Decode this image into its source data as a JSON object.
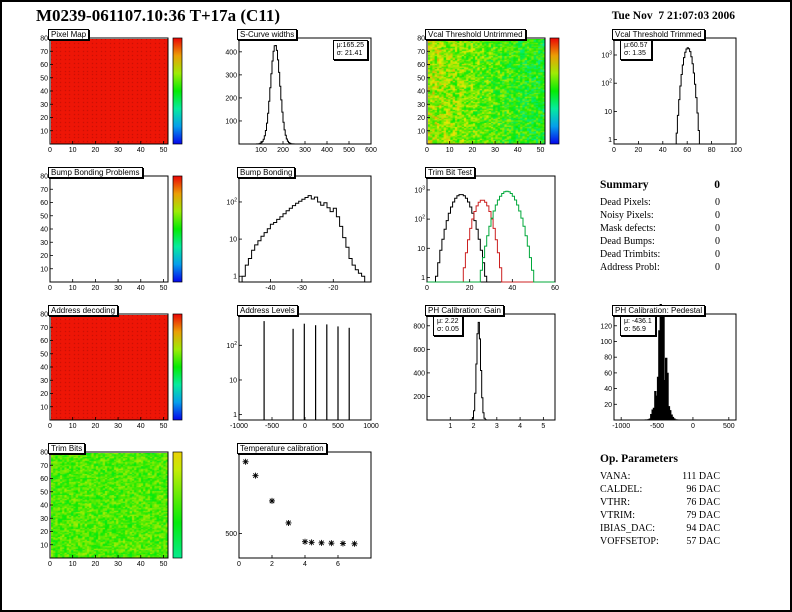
{
  "header": {
    "title": "M0239-061107.10:36 T+17a (C11)",
    "timestamp": "Tue Nov  7 21:07:03 2006"
  },
  "summary": {
    "title": "Summary",
    "value": "0",
    "rows": [
      {
        "label": "Dead Pixels:",
        "value": "0"
      },
      {
        "label": "Noisy Pixels:",
        "value": "0"
      },
      {
        "label": "Mask defects:",
        "value": "0"
      },
      {
        "label": "Dead Bumps:",
        "value": "0"
      },
      {
        "label": "Dead Trimbits:",
        "value": "0"
      },
      {
        "label": "Address Probl:",
        "value": "0"
      }
    ]
  },
  "op_parameters": {
    "title": "Op. Parameters",
    "rows": [
      {
        "label": "VANA:",
        "value": "111 DAC"
      },
      {
        "label": "CALDEL:",
        "value": "96 DAC"
      },
      {
        "label": "VTHR:",
        "value": "76 DAC"
      },
      {
        "label": "VTRIM:",
        "value": "79 DAC"
      },
      {
        "label": "IBIAS_DAC:",
        "value": "94 DAC"
      },
      {
        "label": "VOFFSETOP:",
        "value": "57 DAC"
      }
    ]
  },
  "chart_data": [
    {
      "id": "pixel-map",
      "type": "heatmap",
      "title": "Pixel Map",
      "x_range": [
        0,
        52
      ],
      "y_range": [
        0,
        80
      ],
      "x_ticks": [
        0,
        10,
        20,
        30,
        40,
        50
      ],
      "y_ticks": [
        10,
        20,
        30,
        40,
        50,
        60,
        70,
        80
      ],
      "field": "uniform_red",
      "colorbar": true,
      "palette": "rainbow",
      "palette_range": [
        0,
        1
      ]
    },
    {
      "id": "s-curve-widths",
      "type": "hist",
      "title": "S-Curve widths",
      "x_range": [
        0,
        600
      ],
      "x_ticks": [
        100,
        200,
        300,
        400,
        500,
        600
      ],
      "yscale": "linear",
      "y_range": [
        0,
        460
      ],
      "y_ticks": [
        100,
        200,
        300,
        400
      ],
      "bins": 120,
      "gaussian": {
        "mean": 165.25,
        "sigma": 21.41,
        "amp": 430
      },
      "stats": [
        "μ:165.25",
        "σ: 21.41"
      ],
      "stats_pos": "right"
    },
    {
      "id": "vcal-threshold-untrimmed",
      "type": "heatmap",
      "title": "Vcal Threshold Untrimmed",
      "x_range": [
        0,
        52
      ],
      "y_range": [
        0,
        80
      ],
      "x_ticks": [
        0,
        10,
        20,
        30,
        40,
        50
      ],
      "y_ticks": [
        10,
        20,
        30,
        40,
        50,
        60,
        70,
        80
      ],
      "field": "noise",
      "base": 0.58,
      "spread": 0.32,
      "grad_x": -0.1,
      "colorbar": true,
      "palette": "rainbow",
      "palette_range": [
        0,
        1
      ]
    },
    {
      "id": "vcal-threshold-trimmed",
      "type": "hist",
      "title": "Vcal Threshold Trimmed",
      "x_range": [
        0,
        100
      ],
      "x_ticks": [
        0,
        20,
        40,
        60,
        80,
        100
      ],
      "yscale": "log",
      "y_range": [
        0.7,
        4000
      ],
      "y_ticks": [
        1,
        10,
        100,
        1000
      ],
      "bins": 100,
      "gaussian": {
        "mean": 60.57,
        "sigma": 1.35,
        "amp": 1800,
        "widen": 1.8
      },
      "stats": [
        "μ:60.57",
        "σ: 1.35"
      ],
      "stats_pos": "left"
    },
    {
      "id": "bump-bonding-problems",
      "type": "heatmap",
      "title": "Bump Bonding Problems",
      "x_range": [
        0,
        52
      ],
      "y_range": [
        0,
        80
      ],
      "x_ticks": [
        0,
        10,
        20,
        30,
        40,
        50
      ],
      "y_ticks": [
        10,
        20,
        30,
        40,
        50,
        60,
        70,
        80
      ],
      "field": "empty",
      "colorbar": true,
      "palette": "rainbow",
      "palette_range": [
        0,
        1
      ]
    },
    {
      "id": "bump-bonding",
      "type": "hist",
      "title": "Bump Bonding",
      "x_range": [
        -50,
        -8
      ],
      "x_ticks": [
        -40,
        -30,
        -20
      ],
      "yscale": "log",
      "y_range": [
        0.7,
        500
      ],
      "y_ticks": [
        1,
        10,
        100
      ],
      "points": [
        [
          -49,
          1
        ],
        [
          -48,
          2
        ],
        [
          -47,
          3
        ],
        [
          -46,
          5
        ],
        [
          -45,
          7
        ],
        [
          -44,
          9
        ],
        [
          -43,
          12
        ],
        [
          -42,
          15
        ],
        [
          -41,
          19
        ],
        [
          -40,
          25
        ],
        [
          -39,
          28
        ],
        [
          -38,
          34
        ],
        [
          -37,
          40
        ],
        [
          -36,
          48
        ],
        [
          -35,
          58
        ],
        [
          -34,
          68
        ],
        [
          -33,
          80
        ],
        [
          -32,
          92
        ],
        [
          -31,
          104
        ],
        [
          -30,
          118
        ],
        [
          -29,
          132
        ],
        [
          -28,
          148
        ],
        [
          -27,
          120
        ],
        [
          -26,
          135
        ],
        [
          -25,
          100
        ],
        [
          -24,
          82
        ],
        [
          -23,
          95
        ],
        [
          -22,
          70
        ],
        [
          -21,
          55
        ],
        [
          -20,
          68
        ],
        [
          -19,
          40
        ],
        [
          -18,
          22
        ],
        [
          -17,
          11
        ],
        [
          -16,
          6
        ],
        [
          -15,
          3
        ],
        [
          -14,
          2
        ],
        [
          -13,
          1.5
        ],
        [
          -12,
          1.2
        ],
        [
          -11,
          1
        ],
        [
          -10,
          1
        ]
      ]
    },
    {
      "id": "trim-bit-test",
      "type": "hist",
      "title": "Trim Bit Test",
      "x_range": [
        0,
        60
      ],
      "x_ticks": [
        0,
        20,
        40,
        60
      ],
      "yscale": "log",
      "y_range": [
        0.7,
        3000
      ],
      "y_ticks": [
        1,
        10,
        100,
        1000
      ],
      "bins": 60,
      "series": [
        {
          "name": "trim-bits-low",
          "color": "#000000",
          "gaussian": {
            "mean": 16,
            "sigma": 3.2,
            "amp": 700
          }
        },
        {
          "name": "trim-bits-mid",
          "color": "#cc2020",
          "gaussian": {
            "mean": 26,
            "sigma": 2.6,
            "amp": 450
          }
        },
        {
          "name": "trim-bits-high",
          "color": "#00a83a",
          "gaussian": {
            "mean": 37.5,
            "sigma": 3.4,
            "amp": 900
          }
        }
      ]
    },
    {
      "id": "address-decoding",
      "type": "heatmap",
      "title": "Address decoding",
      "x_range": [
        0,
        52
      ],
      "y_range": [
        0,
        80
      ],
      "x_ticks": [
        0,
        10,
        20,
        30,
        40,
        50
      ],
      "y_ticks": [
        10,
        20,
        30,
        40,
        50,
        60,
        70,
        80
      ],
      "field": "uniform_red",
      "colorbar": true,
      "palette": "rainbow",
      "palette_range": [
        0,
        1
      ]
    },
    {
      "id": "address-levels",
      "type": "spikes",
      "title": "Address Levels",
      "x_range": [
        -1000,
        1000
      ],
      "x_ticks": [
        -1000,
        -500,
        0,
        500,
        1000
      ],
      "yscale": "log",
      "y_range": [
        0.7,
        800
      ],
      "y_ticks": [
        1,
        10,
        100
      ],
      "spikes": [
        [
          -620,
          500
        ],
        [
          -180,
          300
        ],
        [
          -10,
          420
        ],
        [
          160,
          380
        ],
        [
          330,
          400
        ],
        [
          500,
          350
        ],
        [
          670,
          320
        ]
      ]
    },
    {
      "id": "ph-calibration-gain",
      "type": "hist",
      "title": "PH Calibration: Gain",
      "x_range": [
        0,
        5.5
      ],
      "x_ticks": [
        1,
        2,
        3,
        4,
        5
      ],
      "yscale": "linear",
      "y_range": [
        0,
        900
      ],
      "y_ticks": [
        200,
        400,
        600,
        800
      ],
      "bins": 110,
      "gaussian": {
        "mean": 2.22,
        "sigma": 0.05,
        "amp": 830,
        "widen": 1.8
      },
      "stats": [
        "μ: 2.22",
        "σ: 0.05"
      ],
      "stats_pos": "left"
    },
    {
      "id": "ph-calibration-pedestal",
      "type": "hist",
      "title": "PH Calibration: Pedestal",
      "x_range": [
        -1100,
        600
      ],
      "x_ticks": [
        -1000,
        -500,
        0,
        500
      ],
      "yscale": "linear",
      "y_range": [
        0,
        135
      ],
      "y_ticks": [
        20,
        40,
        60,
        80,
        100,
        120
      ],
      "bins": 90,
      "gaussian": {
        "mean": -436.1,
        "sigma": 56.9,
        "amp": 122
      },
      "noise": 0.5,
      "fill": "#000000",
      "stats": [
        "μ: -436.1",
        "σ: 56.9"
      ],
      "stats_pos": "left"
    },
    {
      "id": "trim-bits",
      "type": "heatmap",
      "title": "Trim Bits",
      "x_range": [
        0,
        52
      ],
      "y_range": [
        0,
        80
      ],
      "x_ticks": [
        0,
        10,
        20,
        30,
        40,
        50
      ],
      "y_ticks": [
        10,
        20,
        30,
        40,
        50,
        60,
        70,
        80
      ],
      "field": "noise",
      "base": 0.58,
      "spread": 0.22,
      "grad_x": 0,
      "colorbar": true,
      "palette": "rainbow",
      "palette_range": [
        0.35,
        0.78
      ]
    },
    {
      "id": "temperature-calibration",
      "type": "scatter",
      "title": "Temperature calibration",
      "x_range": [
        0,
        8
      ],
      "x_ticks": [
        0,
        2,
        4,
        6
      ],
      "yscale": "linear",
      "y_range": [
        350,
        1000
      ],
      "y_ticks": [
        500
      ],
      "marker": "star",
      "points": [
        [
          0.4,
          940
        ],
        [
          1.0,
          855
        ],
        [
          2.0,
          700
        ],
        [
          3.0,
          565
        ],
        [
          4.0,
          450
        ],
        [
          4.4,
          446
        ],
        [
          5.0,
          443
        ],
        [
          5.6,
          441
        ],
        [
          6.3,
          439
        ],
        [
          7.0,
          437
        ]
      ]
    }
  ]
}
